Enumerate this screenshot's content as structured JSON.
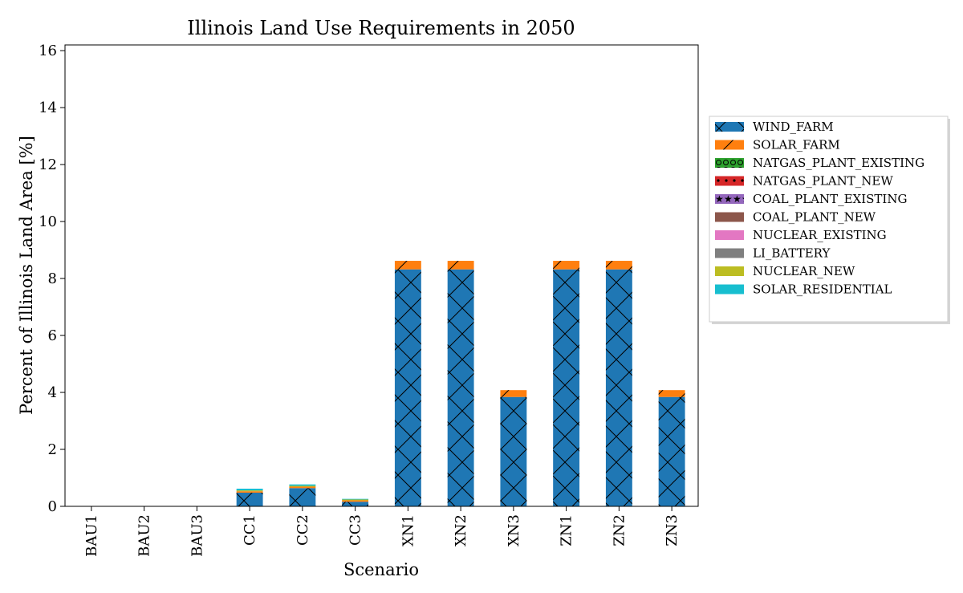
{
  "chart_data": {
    "type": "bar",
    "stacked": true,
    "title": "Illinois Land Use Requirements in 2050",
    "xlabel": "Scenario",
    "ylabel": "Percent of Illinois Land Area [%]",
    "ylim": [
      0,
      16.2
    ],
    "yticks": [
      0,
      2,
      4,
      6,
      8,
      10,
      12,
      14,
      16
    ],
    "ytick_labels": [
      "0",
      "2",
      "4",
      "6",
      "8",
      "10",
      "12",
      "14",
      "16"
    ],
    "legend_position": "right, outside plot",
    "categories": [
      "BAU1",
      "BAU2",
      "BAU3",
      "CC1",
      "CC2",
      "CC3",
      "XN1",
      "XN2",
      "XN3",
      "ZN1",
      "ZN2",
      "ZN3"
    ],
    "series": [
      {
        "name": "WIND_FARM",
        "color": "#1f77b4",
        "hatch": "x",
        "values": [
          0,
          0,
          0,
          0.48,
          0.64,
          0.16,
          8.32,
          8.32,
          3.84,
          8.32,
          8.32,
          3.84
        ]
      },
      {
        "name": "SOLAR_FARM",
        "color": "#ff7f0e",
        "hatch": "/",
        "values": [
          0,
          0,
          0,
          0.05,
          0.05,
          0.05,
          0.3,
          0.3,
          0.24,
          0.3,
          0.3,
          0.24
        ]
      },
      {
        "name": "NATGAS_PLANT_EXISTING",
        "color": "#2ca02c",
        "hatch": "o",
        "values": [
          0,
          0,
          0,
          0,
          0,
          0,
          0,
          0,
          0,
          0,
          0,
          0
        ]
      },
      {
        "name": "NATGAS_PLANT_NEW",
        "color": "#d62728",
        "hatch": ".",
        "values": [
          0,
          0,
          0,
          0,
          0,
          0,
          0,
          0,
          0,
          0,
          0,
          0
        ]
      },
      {
        "name": "COAL_PLANT_EXISTING",
        "color": "#9467bd",
        "hatch": "*",
        "values": [
          0,
          0,
          0,
          0,
          0,
          0,
          0,
          0,
          0,
          0,
          0,
          0
        ]
      },
      {
        "name": "COAL_PLANT_NEW",
        "color": "#8c564b",
        "hatch": "",
        "values": [
          0,
          0,
          0,
          0,
          0,
          0,
          0,
          0,
          0,
          0,
          0,
          0
        ]
      },
      {
        "name": "NUCLEAR_EXISTING",
        "color": "#e377c2",
        "hatch": "",
        "values": [
          0,
          0,
          0,
          0,
          0,
          0,
          0,
          0,
          0,
          0,
          0,
          0
        ]
      },
      {
        "name": "LI_BATTERY",
        "color": "#7f7f7f",
        "hatch": "",
        "values": [
          0,
          0,
          0,
          0,
          0,
          0,
          0,
          0,
          0,
          0,
          0,
          0
        ]
      },
      {
        "name": "NUCLEAR_NEW",
        "color": "#bcbd22",
        "hatch": "",
        "values": [
          0,
          0,
          0,
          0.03,
          0.03,
          0.03,
          0,
          0,
          0,
          0,
          0,
          0
        ]
      },
      {
        "name": "SOLAR_RESIDENTIAL",
        "color": "#17becf",
        "hatch": "",
        "values": [
          0,
          0,
          0,
          0.06,
          0.05,
          0.02,
          0,
          0,
          0,
          0,
          0,
          0
        ]
      }
    ]
  }
}
